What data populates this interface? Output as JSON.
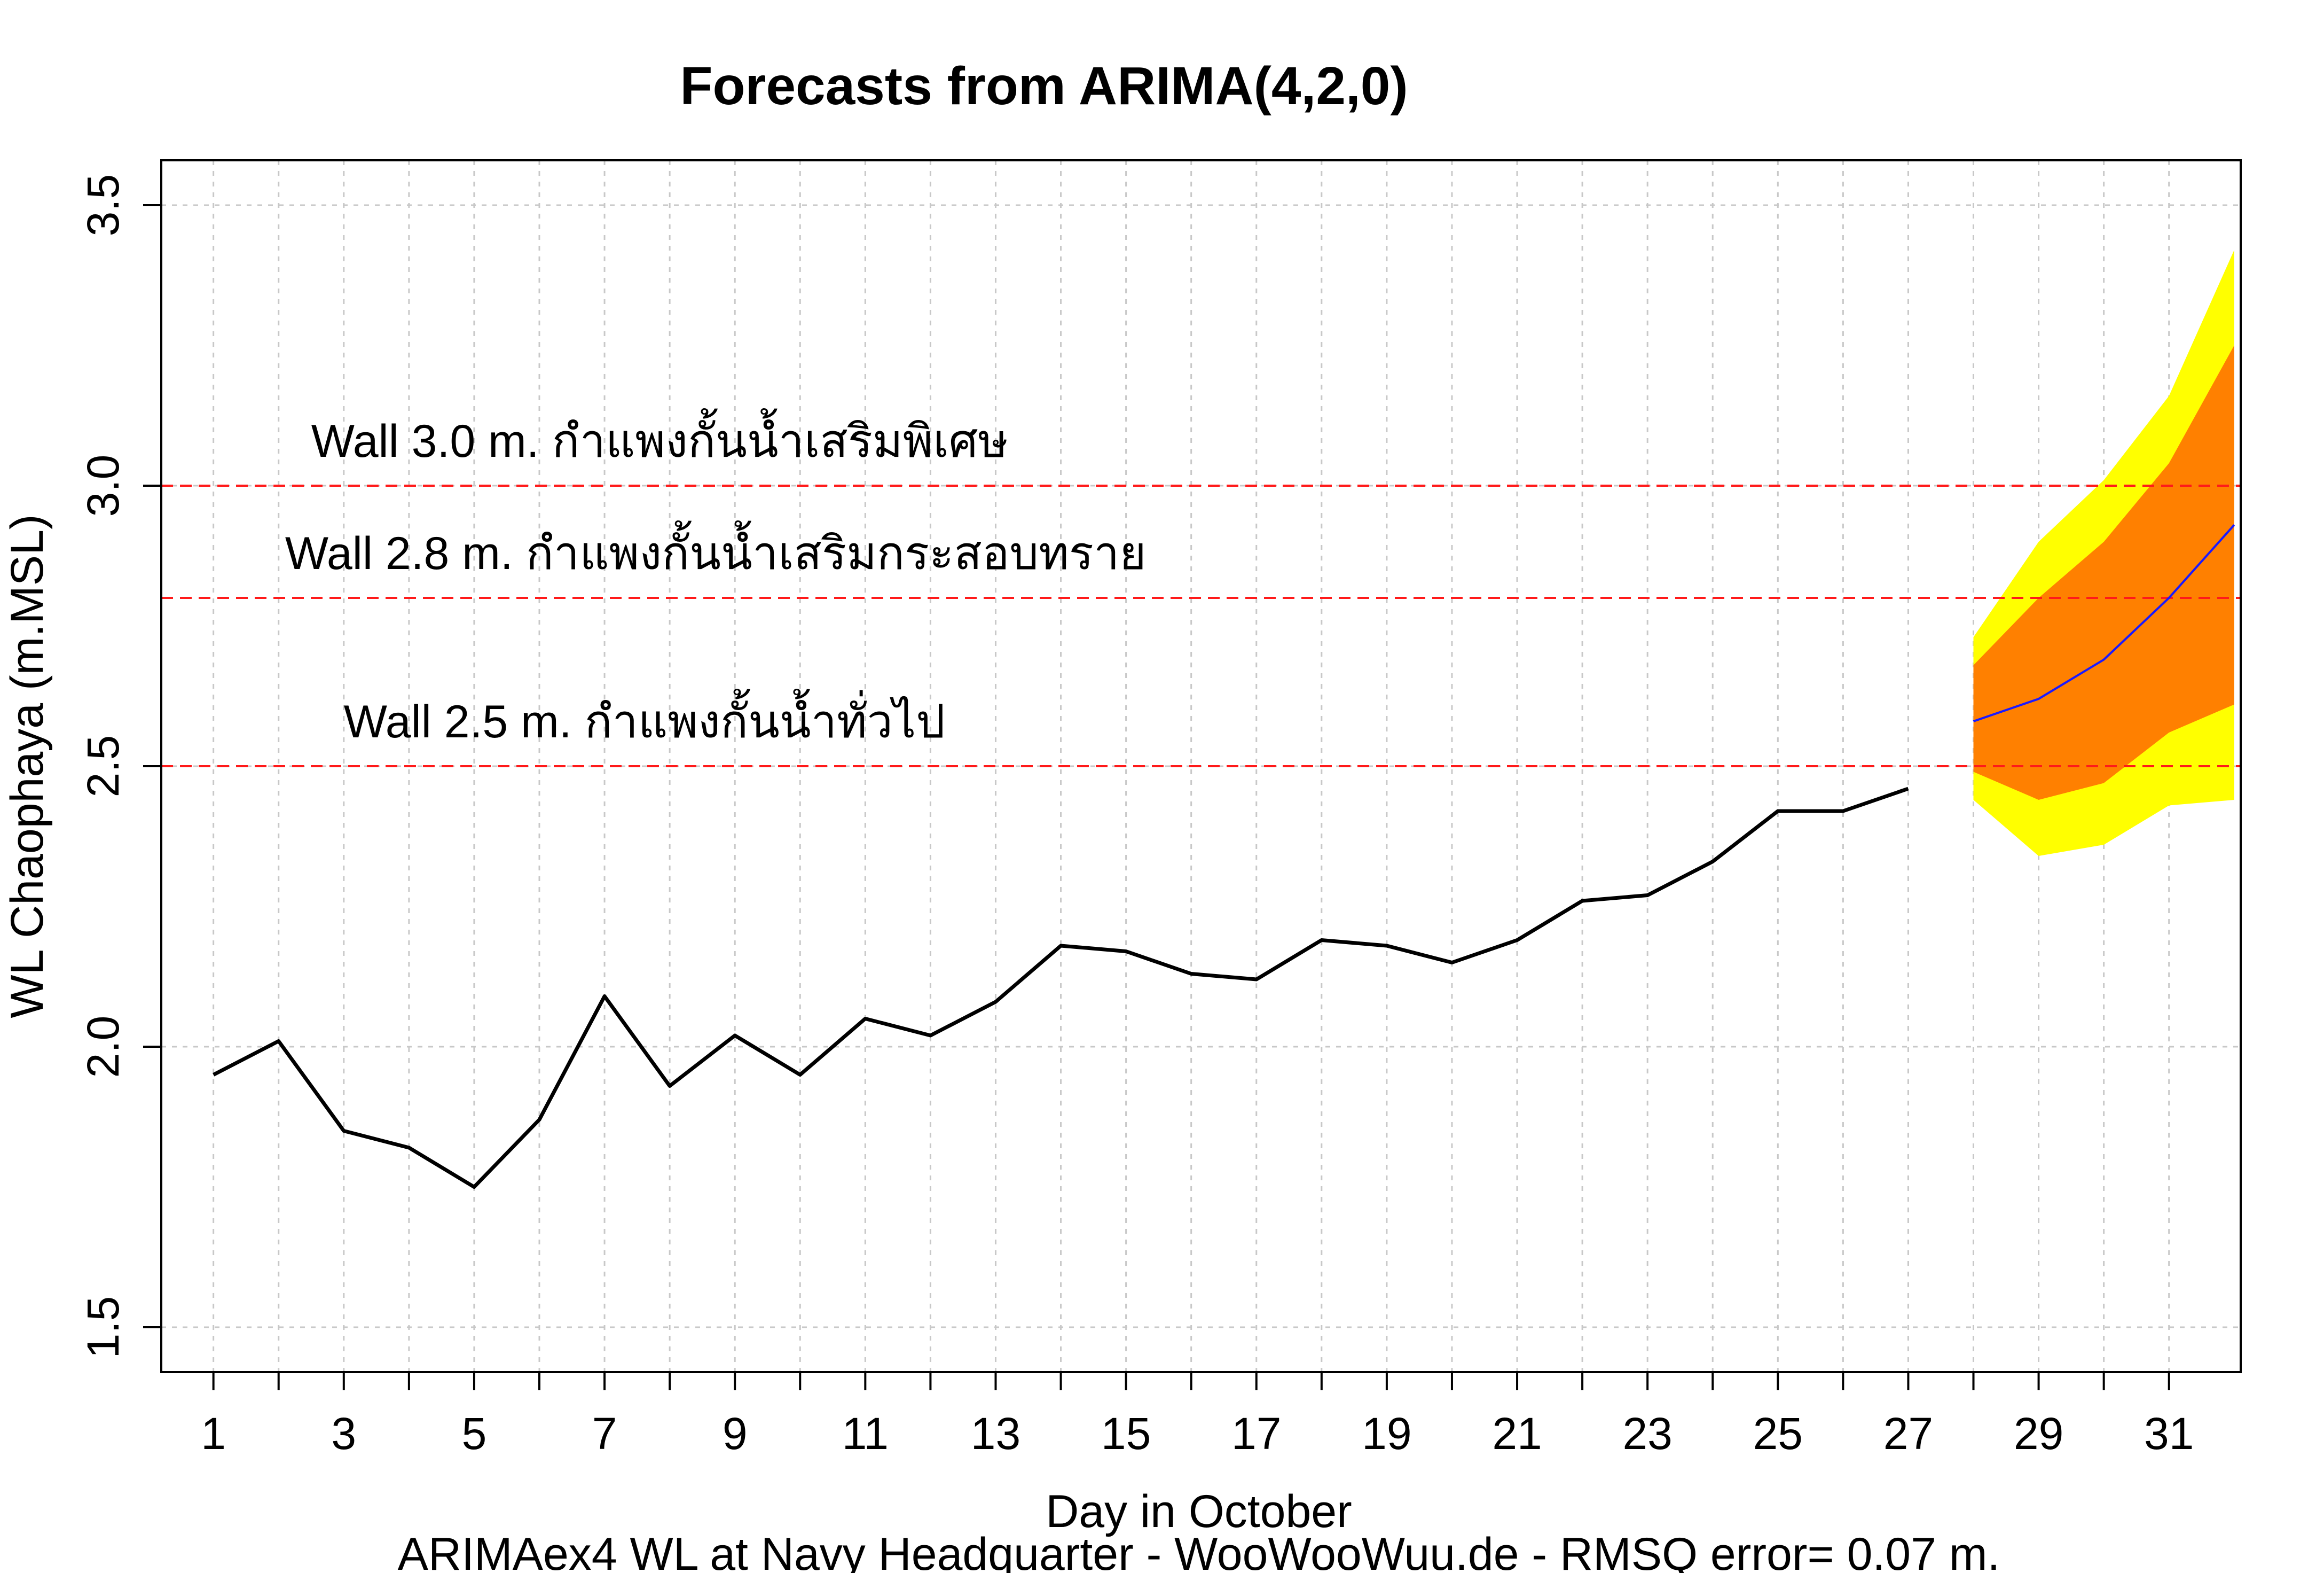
{
  "chart_data": {
    "type": "line",
    "title": "Forecasts from ARIMA(4,2,0)",
    "xlabel": "Day in October",
    "ylabel": "WL Chaophaya (m.MSL)",
    "footer": "ARIMAex4 WL at Navy Headquarter - WooWooWuu.de - RMSQ error= 0.07  m.",
    "xlim": [
      0.2,
      32.1
    ],
    "ylim": [
      1.42,
      3.58
    ],
    "x_ticks": [
      1,
      2,
      3,
      4,
      5,
      6,
      7,
      8,
      9,
      10,
      11,
      12,
      13,
      14,
      15,
      16,
      17,
      18,
      19,
      20,
      21,
      22,
      23,
      24,
      25,
      26,
      27,
      28,
      29,
      30,
      31
    ],
    "x_tick_labels": [
      "1",
      "",
      "3",
      "",
      "5",
      "",
      "7",
      "",
      "9",
      "",
      "11",
      "",
      "13",
      "",
      "15",
      "",
      "17",
      "",
      "19",
      "",
      "21",
      "",
      "23",
      "",
      "25",
      "",
      "27",
      "",
      "29",
      "",
      "31"
    ],
    "y_ticks": [
      1.5,
      2.0,
      2.5,
      3.0,
      3.5
    ],
    "y_tick_labels": [
      "1.5",
      "2.0",
      "2.5",
      "3.0",
      "3.5"
    ],
    "grid": true,
    "observed": {
      "x": [
        1,
        2,
        3,
        4,
        5,
        6,
        7,
        8,
        9,
        10,
        11,
        12,
        13,
        14,
        15,
        16,
        17,
        18,
        19,
        20,
        21,
        22,
        23,
        24,
        25,
        26,
        27
      ],
      "values": [
        1.95,
        2.01,
        1.85,
        1.82,
        1.75,
        1.87,
        2.09,
        1.93,
        2.02,
        1.95,
        2.05,
        2.02,
        2.08,
        2.18,
        2.17,
        2.13,
        2.12,
        2.19,
        2.18,
        2.15,
        2.19,
        2.26,
        2.27,
        2.33,
        2.42,
        2.42,
        2.46
      ],
      "color": "#000000"
    },
    "forecast": {
      "x": [
        28,
        29,
        30,
        31,
        32
      ],
      "mean": [
        2.58,
        2.62,
        2.69,
        2.8,
        2.93
      ],
      "lo80": [
        2.49,
        2.44,
        2.47,
        2.56,
        2.61
      ],
      "hi80": [
        2.68,
        2.8,
        2.9,
        3.04,
        3.25
      ],
      "lo95": [
        2.44,
        2.34,
        2.36,
        2.43,
        2.44
      ],
      "hi95": [
        2.73,
        2.9,
        3.01,
        3.16,
        3.42
      ],
      "mean_color": "#1a1aff",
      "band80_color": "#ff8000",
      "band95_color": "#ffff00"
    },
    "reference_lines": [
      {
        "y": 3.0,
        "label": "Wall 3.0 m. กำแพงกั้นน้ำเสริมพิเศษ",
        "label_x": 2.5,
        "label_y": 3.08,
        "color": "#ff1a1a"
      },
      {
        "y": 2.8,
        "label": "Wall 2.8 m. กำแพงกั้นน้ำเสริมกระสอบทราย",
        "label_x": 2.1,
        "label_y": 2.88,
        "color": "#ff1a1a"
      },
      {
        "y": 2.5,
        "label": "Wall 2.5 m. กำแพงกั้นน้ำทั่วไป",
        "label_x": 3.0,
        "label_y": 2.58,
        "color": "#ff1a1a"
      }
    ]
  }
}
